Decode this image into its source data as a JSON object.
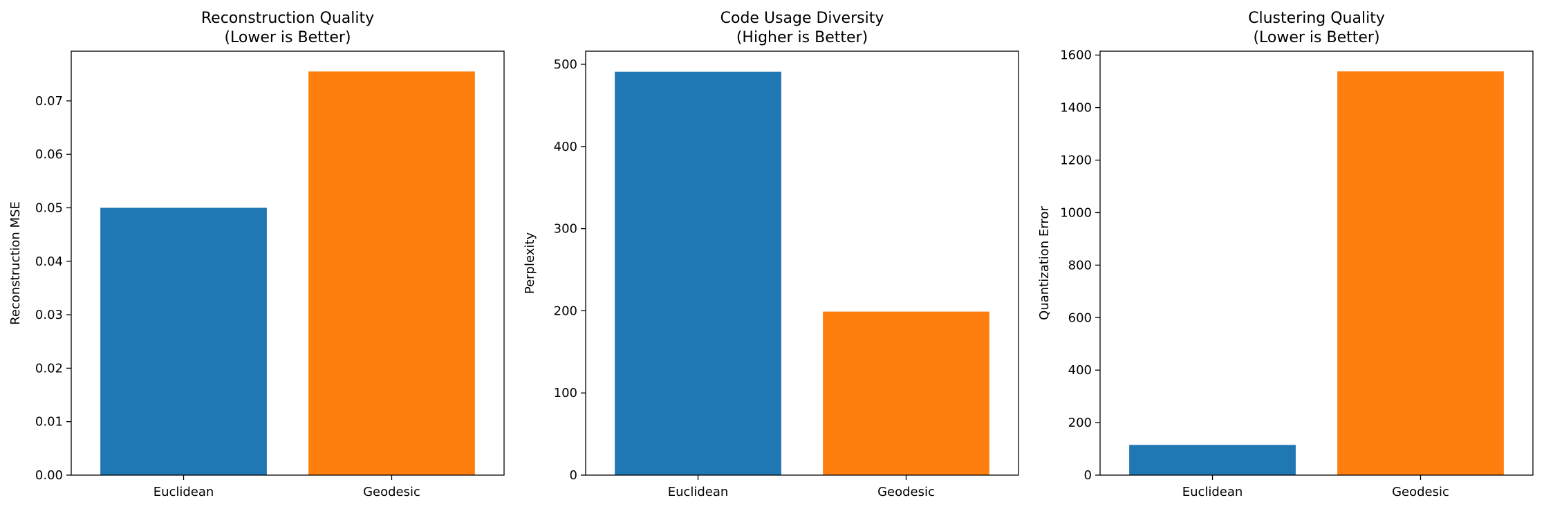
{
  "chart_data": [
    {
      "type": "bar",
      "title": "Reconstruction Quality",
      "subtitle": "(Lower is Better)",
      "xlabel": "",
      "ylabel": "Reconstruction MSE",
      "categories": [
        "Euclidean",
        "Geodesic"
      ],
      "values": [
        0.05,
        0.0755
      ],
      "bar_colors": [
        "#1f77b4",
        "#ff7f0e"
      ],
      "ylim": [
        0,
        0.0793
      ],
      "yticks": [
        0.0,
        0.01,
        0.02,
        0.03,
        0.04,
        0.05,
        0.06,
        0.07
      ],
      "ytick_labels": [
        "0.00",
        "0.01",
        "0.02",
        "0.03",
        "0.04",
        "0.05",
        "0.06",
        "0.07"
      ],
      "grid": false
    },
    {
      "type": "bar",
      "title": "Code Usage Diversity",
      "subtitle": "(Higher is Better)",
      "xlabel": "",
      "ylabel": "Perplexity",
      "categories": [
        "Euclidean",
        "Geodesic"
      ],
      "values": [
        491,
        199
      ],
      "bar_colors": [
        "#1f77b4",
        "#ff7f0e"
      ],
      "ylim": [
        0,
        516
      ],
      "yticks": [
        0,
        100,
        200,
        300,
        400,
        500
      ],
      "ytick_labels": [
        "0",
        "100",
        "200",
        "300",
        "400",
        "500"
      ],
      "grid": false
    },
    {
      "type": "bar",
      "title": "Clustering Quality",
      "subtitle": "(Lower is Better)",
      "xlabel": "",
      "ylabel": "Quantization Error",
      "categories": [
        "Euclidean",
        "Geodesic"
      ],
      "values": [
        115,
        1538
      ],
      "bar_colors": [
        "#1f77b4",
        "#ff7f0e"
      ],
      "ylim": [
        0,
        1615
      ],
      "yticks": [
        0,
        200,
        400,
        600,
        800,
        1000,
        1200,
        1400,
        1600
      ],
      "ytick_labels": [
        "0",
        "200",
        "400",
        "600",
        "800",
        "1000",
        "1200",
        "1400",
        "1600"
      ],
      "grid": false
    }
  ]
}
